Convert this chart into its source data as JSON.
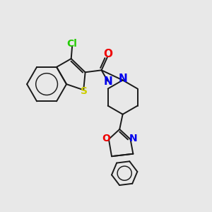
{
  "background_color": "#e8e8e8",
  "bond_color": "#1a1a1a",
  "atom_colors": {
    "Cl": "#22cc00",
    "S": "#cccc00",
    "N": "#0000ee",
    "O": "#ee0000"
  },
  "figsize": [
    3.0,
    3.0
  ],
  "dpi": 100,
  "lw": 1.4
}
